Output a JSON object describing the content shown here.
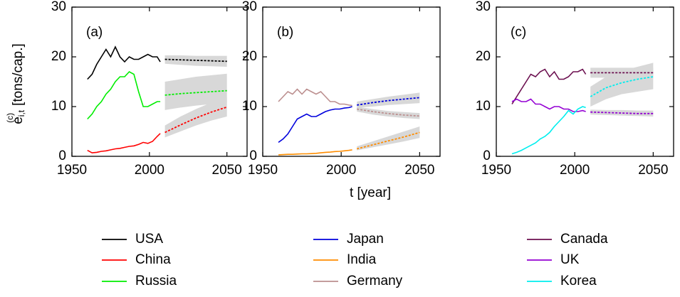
{
  "chart_data": [
    {
      "type": "line",
      "label": "(a)",
      "xlim": [
        1950,
        2063
      ],
      "ylim": [
        0,
        30
      ],
      "xticks": [
        1950,
        2000,
        2050
      ],
      "yticks": [
        0,
        10,
        20,
        30
      ],
      "x_hist": [
        1960,
        1963,
        1966,
        1969,
        1972,
        1975,
        1978,
        1981,
        1984,
        1987,
        1990,
        1993,
        1996,
        1999,
        2002,
        2005,
        2007
      ],
      "x_proj": [
        2010,
        2020,
        2030,
        2040,
        2050
      ],
      "series": [
        {
          "name": "USA",
          "color": "#000000",
          "values": [
            15.5,
            16.5,
            18.5,
            20,
            21.5,
            20,
            22,
            20,
            19,
            20,
            19.5,
            19.5,
            20,
            20.5,
            20,
            20,
            19
          ],
          "projection": [
            19.5,
            19.4,
            19.3,
            19.2,
            19.1
          ],
          "band_lower": [
            18.6,
            18.4,
            18.2,
            18.1,
            18.0
          ],
          "band_upper": [
            20.3,
            20.3,
            20.2,
            20.2,
            20.2
          ]
        },
        {
          "name": "China",
          "color": "#ff0000",
          "values": [
            1.2,
            0.7,
            0.8,
            1.0,
            1.1,
            1.3,
            1.5,
            1.6,
            1.8,
            2.0,
            2.1,
            2.4,
            2.8,
            2.6,
            3.0,
            4.0,
            4.6
          ],
          "projection": [
            4.8,
            6.3,
            7.7,
            8.9,
            9.9
          ],
          "band_lower": [
            3.8,
            5,
            6.2,
            7.2,
            8
          ],
          "band_upper": [
            6.2,
            8,
            9.5,
            10.8,
            11.8
          ]
        },
        {
          "name": "Russia",
          "color": "#00ee00",
          "values": [
            7.5,
            8.5,
            10,
            11,
            12.5,
            13.5,
            15,
            16,
            16,
            17,
            16.5,
            13,
            10,
            10,
            10.5,
            11,
            11
          ],
          "projection": [
            12.3,
            12.6,
            12.8,
            13,
            13.2
          ],
          "band_lower": [
            9.3,
            9.8,
            10.2,
            10.5,
            10.8
          ],
          "band_upper": [
            15,
            15.5,
            16,
            16.3,
            16.6
          ]
        }
      ]
    },
    {
      "type": "line",
      "label": "(b)",
      "xlim": [
        1950,
        2063
      ],
      "ylim": [
        0,
        30
      ],
      "xticks": [
        1950,
        2000,
        2050
      ],
      "yticks": [
        0,
        10,
        20,
        30
      ],
      "x_hist": [
        1960,
        1963,
        1966,
        1969,
        1972,
        1975,
        1978,
        1981,
        1984,
        1987,
        1990,
        1993,
        1996,
        1999,
        2002,
        2005,
        2007
      ],
      "x_proj": [
        2010,
        2020,
        2030,
        2040,
        2050
      ],
      "series": [
        {
          "name": "Japan",
          "color": "#0000dd",
          "values": [
            2.8,
            3.5,
            4.5,
            6,
            7.5,
            8,
            8.5,
            8,
            8,
            8.5,
            9,
            9.3,
            9.5,
            9.5,
            9.7,
            9.8,
            10
          ],
          "projection": [
            10.3,
            10.8,
            11.2,
            11.5,
            11.8
          ],
          "band_lower": [
            9.8,
            10,
            10.3,
            10.5,
            10.7
          ],
          "band_upper": [
            11,
            11.5,
            12,
            12.4,
            12.8
          ]
        },
        {
          "name": "India",
          "color": "#ff8c00",
          "values": [
            0.3,
            0.35,
            0.4,
            0.4,
            0.45,
            0.5,
            0.5,
            0.55,
            0.6,
            0.7,
            0.8,
            0.85,
            0.95,
            1.0,
            1.1,
            1.2,
            1.3
          ],
          "projection": [
            1.5,
            2.3,
            3.1,
            3.9,
            4.8
          ],
          "band_lower": [
            1.2,
            1.8,
            2.4,
            3,
            3.7
          ],
          "band_upper": [
            2,
            3,
            4,
            5,
            6
          ]
        },
        {
          "name": "Germany",
          "color": "#bc8f8f",
          "values": [
            11,
            12,
            13,
            12.5,
            13.5,
            12.5,
            13.5,
            13,
            12.5,
            13,
            12,
            11,
            11,
            10.5,
            10.5,
            10.3,
            10.2
          ],
          "projection": [
            9.5,
            9.0,
            8.6,
            8.3,
            8.1
          ],
          "band_lower": [
            9,
            8.4,
            8,
            7.7,
            7.5
          ],
          "band_upper": [
            10,
            9.5,
            9.1,
            8.9,
            8.7
          ]
        }
      ]
    },
    {
      "type": "line",
      "label": "(c)",
      "xlim": [
        1950,
        2063
      ],
      "ylim": [
        0,
        30
      ],
      "xticks": [
        1950,
        2000,
        2050
      ],
      "yticks": [
        0,
        10,
        20,
        30
      ],
      "x_hist": [
        1960,
        1963,
        1966,
        1969,
        1972,
        1975,
        1978,
        1981,
        1984,
        1987,
        1990,
        1993,
        1996,
        1999,
        2002,
        2005,
        2007
      ],
      "x_proj": [
        2010,
        2020,
        2030,
        2040,
        2050
      ],
      "series": [
        {
          "name": "Canada",
          "color": "#6b0f4f",
          "values": [
            10.5,
            12,
            13.5,
            15,
            16.5,
            16,
            17,
            17.5,
            16,
            17,
            15.5,
            15.5,
            16,
            17,
            17,
            17.5,
            16.5
          ],
          "projection": [
            16.8,
            16.8,
            16.8,
            16.8,
            16.8
          ],
          "band_lower": [
            15.8,
            15.8,
            15.8,
            15.8,
            15.8
          ],
          "band_upper": [
            17.8,
            17.8,
            17.8,
            17.8,
            17.8
          ]
        },
        {
          "name": "UK",
          "color": "#9400d3",
          "values": [
            11,
            11.5,
            11,
            11,
            11.5,
            10.5,
            10.5,
            10,
            9.5,
            10,
            10,
            9.5,
            9.5,
            9,
            9,
            9.2,
            9
          ],
          "projection": [
            8.9,
            8.8,
            8.7,
            8.6,
            8.6
          ],
          "band_lower": [
            8.4,
            8.3,
            8.2,
            8.1,
            8.0
          ],
          "band_upper": [
            9.4,
            9.3,
            9.3,
            9.2,
            9.2
          ]
        },
        {
          "name": "Korea",
          "color": "#00eeee",
          "values": [
            0.5,
            0.8,
            1.2,
            1.7,
            2.2,
            2.7,
            3.5,
            4,
            4.8,
            6,
            7,
            8,
            9.2,
            8.5,
            9.5,
            10,
            9.8
          ],
          "projection": [
            12,
            13.8,
            14.8,
            15.5,
            16
          ],
          "band_lower": [
            10,
            11.5,
            12.5,
            13,
            13.5
          ],
          "band_upper": [
            14,
            16,
            17.2,
            18,
            18.8
          ]
        }
      ]
    }
  ],
  "y_label": {
    "symbol": "e",
    "subscript": "i,t",
    "superscript": "(c)",
    "unit": "[tons/cap.]"
  },
  "x_label": "t  [year]"
}
